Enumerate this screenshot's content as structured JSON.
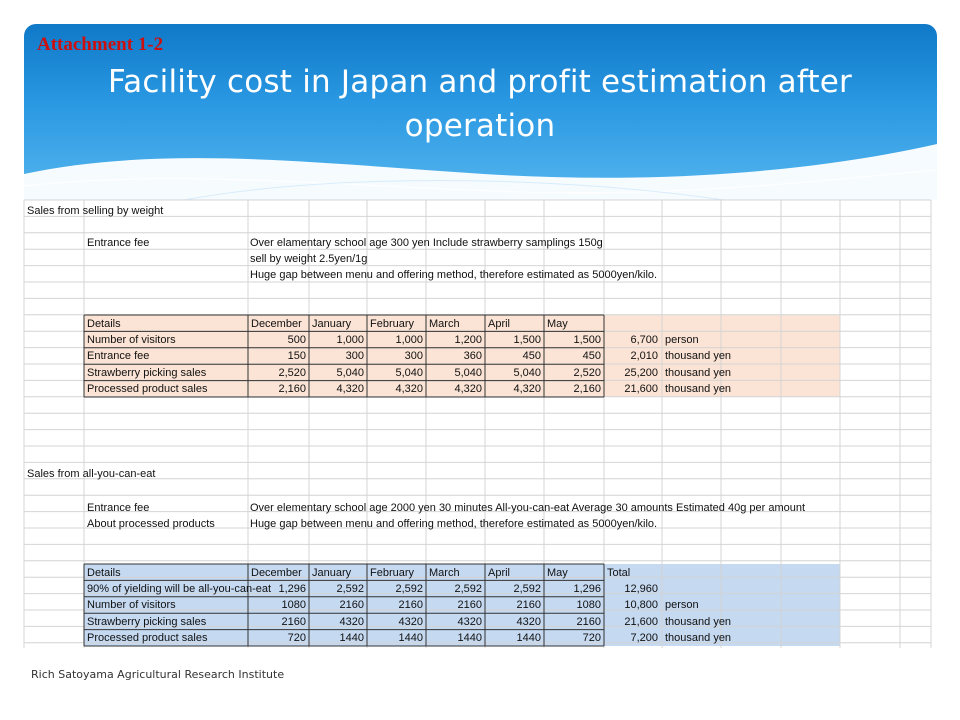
{
  "header": {
    "attachment": "Attachment 1-2",
    "title": "Facility cost in Japan and profit estimation after operation"
  },
  "section1": {
    "heading": "Sales from selling by weight",
    "lines": [
      {
        "label": "Entrance fee",
        "text": "Over elamentary school age 300 yen    Include strawberry samplings  150g"
      },
      {
        "label": "",
        "text": "sell by weight  2.5yen/1g"
      },
      {
        "label": "",
        "text": "Huge gap between menu and offering method, therefore estimated as 5000yen/kilo."
      }
    ],
    "table": {
      "header": [
        "Details",
        "December",
        "January",
        "February",
        "March",
        "April",
        "May"
      ],
      "total_header": "",
      "rows": [
        {
          "label": "Number of visitors",
          "values": [
            "500",
            "1,000",
            "1,000",
            "1,200",
            "1,500",
            "1,500"
          ],
          "total": "6,700",
          "unit": "person"
        },
        {
          "label": "Entrance fee",
          "values": [
            "150",
            "300",
            "300",
            "360",
            "450",
            "450"
          ],
          "total": "2,010",
          "unit": "thousand yen"
        },
        {
          "label": "Strawberry picking sales",
          "values": [
            "2,520",
            "5,040",
            "5,040",
            "5,040",
            "5,040",
            "2,520"
          ],
          "total": "25,200",
          "unit": "thousand yen"
        },
        {
          "label": "Processed product sales",
          "values": [
            "2,160",
            "4,320",
            "4,320",
            "4,320",
            "4,320",
            "2,160"
          ],
          "total": "21,600",
          "unit": "thousand yen"
        }
      ]
    }
  },
  "section2": {
    "heading": "Sales from all-you-can-eat",
    "lines": [
      {
        "label": "Entrance fee",
        "text": "Over elementary school age 2000 yen  30 minutes All-you-can-eat     Average 30 amounts   Estimated 40g per amount"
      },
      {
        "label": "About processed products",
        "text": "Huge gap between menu and offering method, therefore estimated as 5000yen/kilo."
      }
    ],
    "table": {
      "header": [
        "Details",
        "December",
        "January",
        "February",
        "March",
        "April",
        "May"
      ],
      "total_header": "Total",
      "rows": [
        {
          "label": "90% of yielding will be all-you-can-eat",
          "values": [
            "1,296",
            "2,592",
            "2,592",
            "2,592",
            "2,592",
            "1,296"
          ],
          "total": "12,960",
          "unit": ""
        },
        {
          "label": "Number of visitors",
          "values": [
            "1080",
            "2160",
            "2160",
            "2160",
            "2160",
            "1080"
          ],
          "total": "10,800",
          "unit": "person"
        },
        {
          "label": "Strawberry picking sales",
          "values": [
            "2160",
            "4320",
            "4320",
            "4320",
            "4320",
            "2160"
          ],
          "total": "21,600",
          "unit": "thousand yen"
        },
        {
          "label": "Processed product sales",
          "values": [
            "720",
            "1440",
            "1440",
            "1440",
            "1440",
            "720"
          ],
          "total": "7,200",
          "unit": "thousand yen"
        }
      ]
    }
  },
  "footer": {
    "text": "Rich Satoyama Agricultural Research Institute"
  },
  "colors": {
    "table1_fill": "#fbe4d5",
    "table2_fill": "#c5d9f1",
    "grid": "#d4d4d4",
    "accent": "#cc1010"
  }
}
